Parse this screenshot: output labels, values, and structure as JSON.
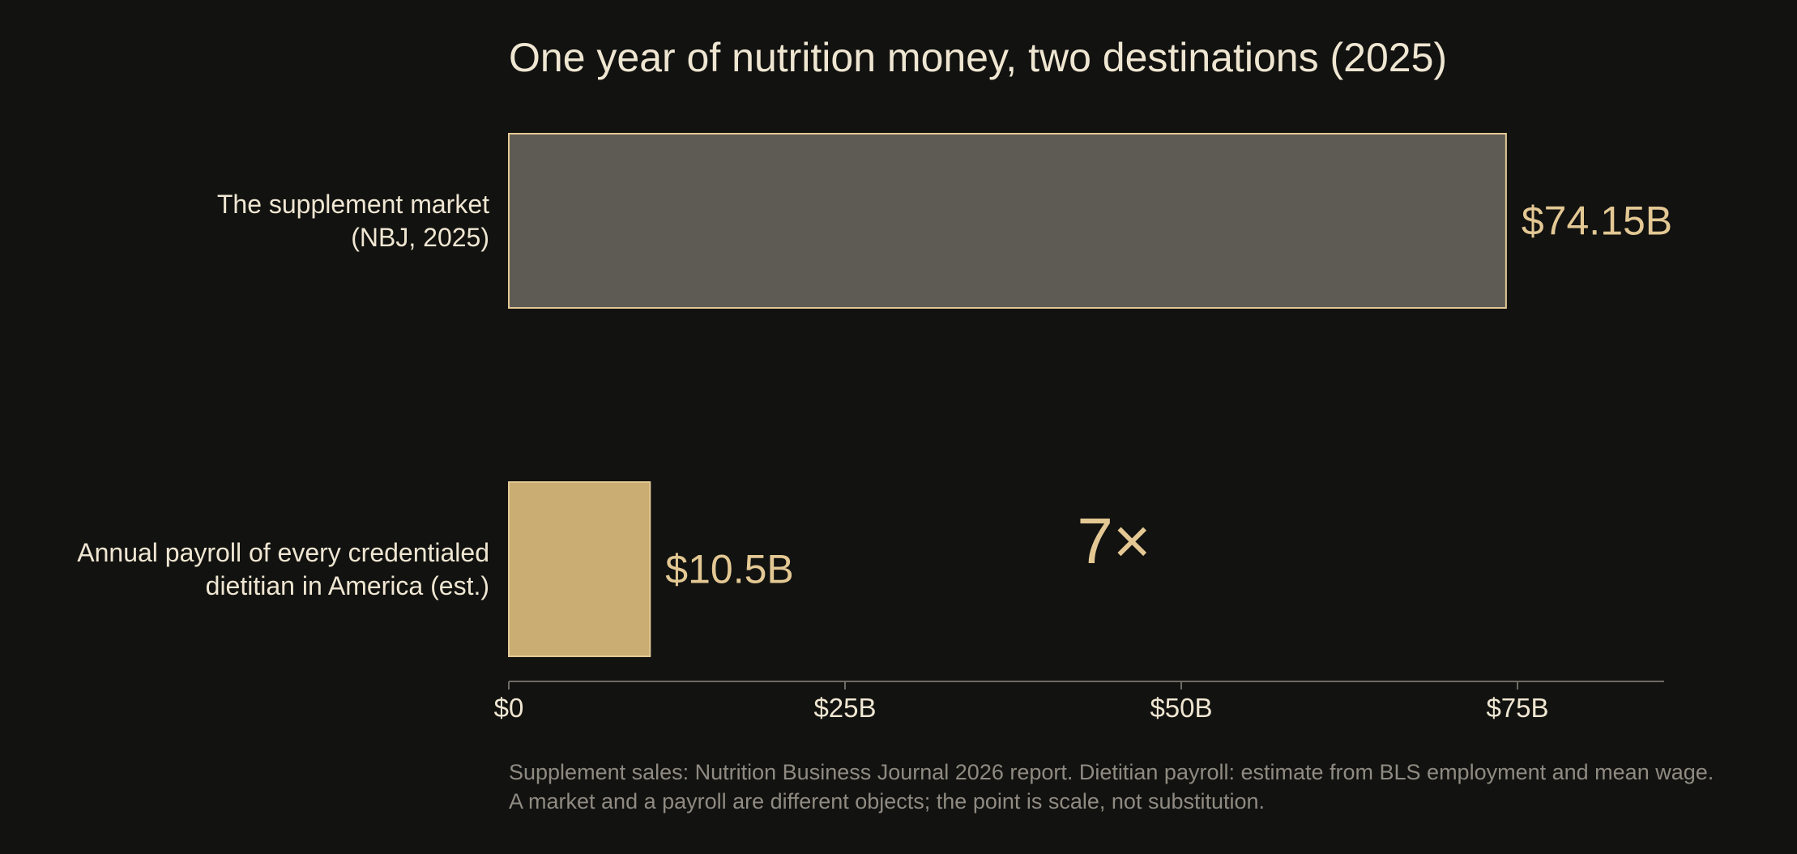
{
  "chart_data": {
    "type": "bar",
    "orientation": "horizontal",
    "title": "One year of nutrition money, two destinations (2025)",
    "categories": [
      [
        "The supplement market",
        "(NBJ, 2025)"
      ],
      [
        "Annual payroll of every credentialed",
        "dietitian in America (est.)"
      ]
    ],
    "values": [
      74.15,
      10.5
    ],
    "value_labels": [
      "$74.15B",
      "$10.5B"
    ],
    "bar_colors": [
      "#5e5b54",
      "#c9ad72"
    ],
    "bar_stroke": "#e3c894",
    "xlim": [
      0,
      86
    ],
    "ticks": [
      0,
      25,
      50,
      75
    ],
    "tick_labels": [
      "$0",
      "$25B",
      "$50B",
      "$75B"
    ],
    "xlabel": "",
    "ylabel": "",
    "grid": false,
    "annotation": {
      "text": "7×",
      "x": 45
    },
    "footnote": [
      "Supplement sales: Nutrition Business Journal 2026 report. Dietitian payroll: estimate from BLS employment and mean wage.",
      "A market and a payroll are different objects; the point is scale, not substitution."
    ],
    "colors": {
      "background": "#121210",
      "text": "#efe6d2",
      "accent": "#e3c894",
      "axis": "#6e6b64",
      "muted": "#8f8b82"
    }
  }
}
